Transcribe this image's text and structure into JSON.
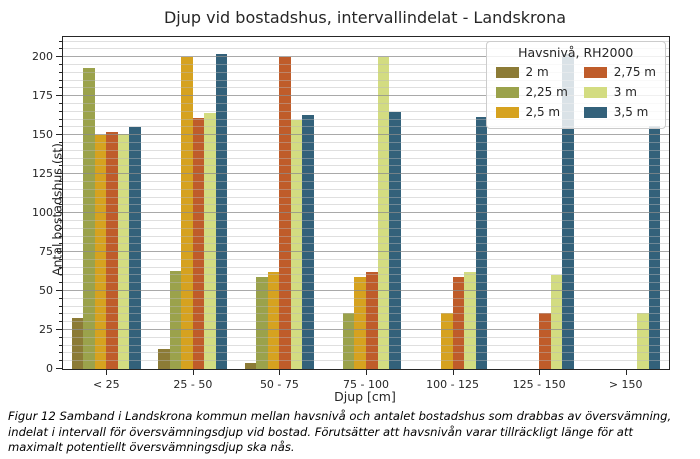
{
  "title": "Djup vid bostadshus, intervallindelat - Landskrona",
  "chart_data": {
    "type": "bar",
    "categories": [
      "< 25",
      "25 - 50",
      "50 - 75",
      "75 - 100",
      "100 - 125",
      "125 - 150",
      "> 150"
    ],
    "series": [
      {
        "name": "2 m",
        "color": "#8c7b36",
        "values": [
          33,
          13,
          4,
          0,
          0,
          0,
          0
        ]
      },
      {
        "name": "2,25 m",
        "color": "#9ba24b",
        "values": [
          193,
          63,
          59,
          36,
          0,
          0,
          0
        ]
      },
      {
        "name": "2,5 m",
        "color": "#d6a21f",
        "values": [
          150,
          200,
          62,
          59,
          36,
          0,
          0
        ]
      },
      {
        "name": "2,75 m",
        "color": "#bf5c2a",
        "values": [
          152,
          161,
          200,
          62,
          59,
          36,
          0
        ]
      },
      {
        "name": "3 m",
        "color": "#d3dc81",
        "values": [
          151,
          164,
          160,
          200,
          62,
          60,
          36
        ]
      },
      {
        "name": "3,5 m",
        "color": "#33617a",
        "values": [
          155,
          202,
          163,
          165,
          162,
          202,
          156
        ]
      }
    ],
    "title": "Djup vid bostadshus, intervallindelat - Landskrona",
    "xlabel": "Djup [cm]",
    "ylabel": "Antal bostadshus (st)",
    "ylim": [
      0,
      213
    ],
    "ytick_step": 25,
    "yminor_step": 5,
    "grid": true,
    "legend_title": "Havsnivå, RH2000",
    "legend_position": "upper right"
  },
  "caption_lines": [
    "Figur 12 Samband i Landskrona kommun mellan havsnivå och antalet bostadshus som drabbas av översvämning,",
    "indelat i intervall för översvämningsdjup vid bostad. Förutsätter att havsnivån varar tillräckligt länge för att",
    "maximalt potentiellt översvämningsdjup ska nås."
  ]
}
